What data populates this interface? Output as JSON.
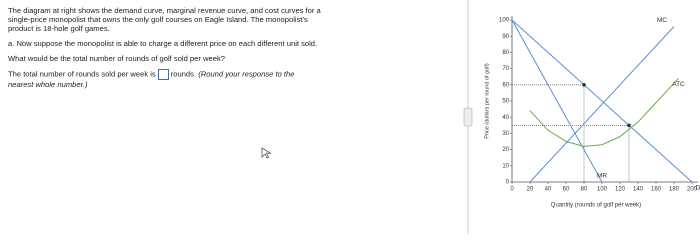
{
  "question": {
    "intro": [
      "The diagram at right shows the demand curve, marginal revenue curve, and cost curves for a",
      "single-price monopolist that owns the only golf courses on Eagle Island. The monopolist's",
      "product is 18-hole golf games."
    ],
    "part_a": "a. Now suppose the monopolist is able to charge a different price on each different unit sold.",
    "prompt": "What would be the total number of rounds of golf sold per week?",
    "answer_before": "The total number of rounds sold per week is",
    "answer_after": "rounds.",
    "answer_note": [
      "(Round your response to the",
      "nearest whole number.)"
    ]
  },
  "chart_data": {
    "type": "line",
    "x_label": "Quantity (rounds of golf per week)",
    "y_label": "Price (dollars per round of golf)",
    "xlim": [
      0,
      200
    ],
    "ylim": [
      0,
      100
    ],
    "xticks": [
      0,
      20,
      40,
      60,
      80,
      100,
      120,
      140,
      160,
      180,
      200
    ],
    "yticks": [
      0,
      10,
      20,
      30,
      40,
      50,
      60,
      70,
      80,
      90,
      100
    ],
    "series": [
      {
        "name": "D",
        "color": "#5b8fd6",
        "x": [
          0,
          200
        ],
        "values": [
          100,
          0
        ]
      },
      {
        "name": "MR",
        "color": "#5b8fd6",
        "x": [
          0,
          100
        ],
        "values": [
          100,
          0
        ]
      },
      {
        "name": "MC",
        "color": "#5b8fd6",
        "x": [
          20,
          180
        ],
        "values": [
          0,
          96
        ]
      },
      {
        "name": "ATC",
        "color": "#6aa84f",
        "x": [
          20,
          40,
          60,
          80,
          100,
          120,
          140,
          160,
          185
        ],
        "values": [
          44,
          32,
          25,
          22,
          23,
          28,
          37,
          49,
          64
        ]
      }
    ],
    "points": [
      {
        "x": 80,
        "y": 60
      },
      {
        "x": 130,
        "y": 35
      }
    ]
  }
}
